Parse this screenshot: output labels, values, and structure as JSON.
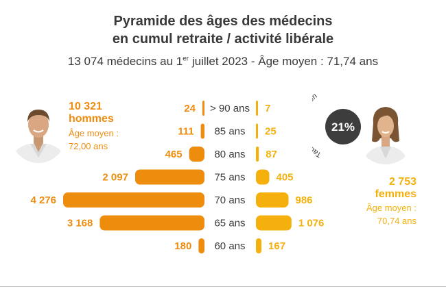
{
  "title_line1": "Pyramide des âges des médecins",
  "title_line2": "en cumul retraite / activité libérale",
  "subtitle_before": "13 074 médecins au 1",
  "subtitle_sup": "er",
  "subtitle_after": " juillet 2023 - Âge moyen : 71,74 ans",
  "men": {
    "count": "10 321",
    "label": "hommes",
    "avg_label": "Âge moyen :",
    "avg_value": "72,00 ans"
  },
  "women": {
    "count": "2 753",
    "label": "femmes",
    "avg_label": "Âge moyen :",
    "avg_value": "70,74 ans"
  },
  "feminisation": {
    "rate": "21%",
    "label": "Taux de féminisation"
  },
  "colors": {
    "men": "#ee8c0e",
    "women": "#f4b00c",
    "badge": "#3d3d3d"
  },
  "chart_data": {
    "type": "bar",
    "orientation": "horizontal-pyramid",
    "categories": [
      "> 90 ans",
      "85 ans",
      "80 ans",
      "75 ans",
      "70 ans",
      "65 ans",
      "60 ans"
    ],
    "series": [
      {
        "name": "hommes",
        "values": [
          24,
          111,
          465,
          2097,
          4276,
          3168,
          180
        ],
        "labels": [
          "24",
          "111",
          "465",
          "2 097",
          "4 276",
          "3 168",
          "180"
        ]
      },
      {
        "name": "femmes",
        "values": [
          7,
          25,
          87,
          405,
          986,
          1076,
          167
        ],
        "labels": [
          "7",
          "25",
          "87",
          "405",
          "986",
          "1 076",
          "167"
        ]
      }
    ]
  }
}
